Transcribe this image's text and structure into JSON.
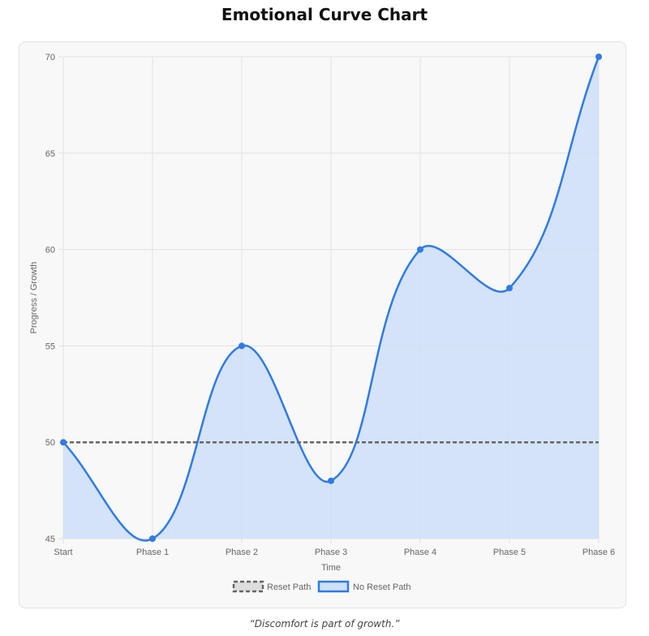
{
  "title": "Emotional Curve Chart",
  "quote": "“Discomfort is part of growth.”",
  "chart_data": {
    "type": "line",
    "categories": [
      "Start",
      "Phase 1",
      "Phase 2",
      "Phase 3",
      "Phase 4",
      "Phase 5",
      "Phase 6"
    ],
    "series": [
      {
        "name": "Reset Path",
        "values": [
          50,
          50,
          50,
          50,
          50,
          50,
          50
        ],
        "color": "#666666",
        "style": "dashed",
        "fill": false
      },
      {
        "name": "No Reset Path",
        "values": [
          50,
          45,
          55,
          48,
          60,
          58,
          70
        ],
        "color": "#2f7be4",
        "fill_color": "#cfe0f6",
        "fill": true
      }
    ],
    "xlabel": "Time",
    "ylabel": "Progress / Growth",
    "ylim": [
      45,
      70
    ],
    "yticks": [
      45,
      50,
      55,
      60,
      65,
      70
    ],
    "grid": true,
    "legend": "bottom"
  }
}
